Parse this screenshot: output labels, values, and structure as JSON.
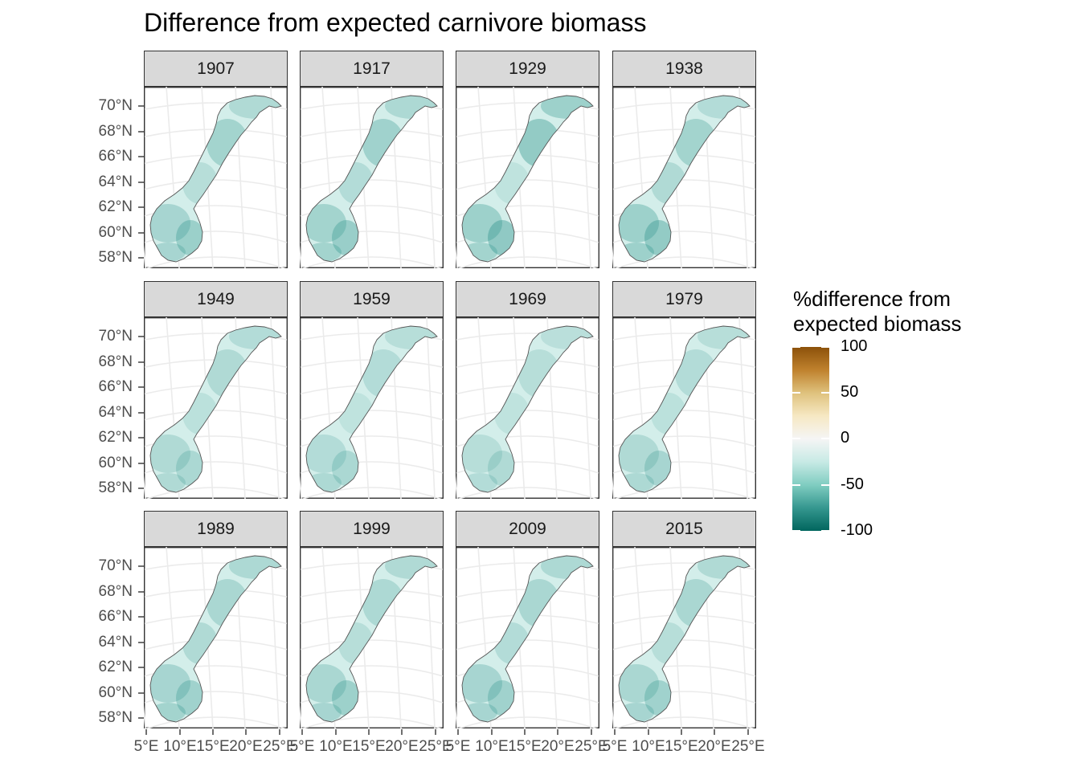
{
  "title": "Difference from expected carnivore biomass",
  "panels": [
    "1907",
    "1917",
    "1929",
    "1938",
    "1949",
    "1959",
    "1969",
    "1979",
    "1989",
    "1999",
    "2009",
    "2015"
  ],
  "panel_shading": [
    [
      0.22,
      0.3,
      0.18,
      0.28,
      0.35,
      0.28
    ],
    [
      0.24,
      0.32,
      0.2,
      0.3,
      0.37,
      0.3
    ],
    [
      0.34,
      0.4,
      0.12,
      0.34,
      0.42,
      0.3
    ],
    [
      0.2,
      0.3,
      0.22,
      0.34,
      0.4,
      0.34
    ],
    [
      0.2,
      0.22,
      0.15,
      0.22,
      0.25,
      0.22
    ],
    [
      0.18,
      0.2,
      0.12,
      0.2,
      0.25,
      0.24
    ],
    [
      0.16,
      0.18,
      0.12,
      0.18,
      0.22,
      0.2
    ],
    [
      0.18,
      0.2,
      0.15,
      0.22,
      0.28,
      0.24
    ],
    [
      0.24,
      0.26,
      0.22,
      0.28,
      0.32,
      0.3
    ],
    [
      0.22,
      0.24,
      0.18,
      0.26,
      0.34,
      0.28
    ],
    [
      0.24,
      0.26,
      0.2,
      0.28,
      0.32,
      0.28
    ],
    [
      0.22,
      0.26,
      0.18,
      0.26,
      0.32,
      0.28
    ]
  ],
  "y_axis_labels": [
    "70°N",
    "68°N",
    "66°N",
    "64°N",
    "62°N",
    "60°N",
    "58°N"
  ],
  "x_axis_labels": [
    "5°E",
    "10°E",
    "15°E",
    "20°E",
    "25°E"
  ],
  "legend": {
    "title_line1": "%difference from",
    "title_line2": "expected biomass",
    "labels": [
      "100",
      "50",
      "0",
      "-50",
      "-100"
    ],
    "colors": [
      "#8c510a",
      "#bf812d",
      "#dfc27d",
      "#f6e8c3",
      "#f5f5f5",
      "#c7eae5",
      "#80cdc1",
      "#35978f",
      "#01665e"
    ]
  }
}
